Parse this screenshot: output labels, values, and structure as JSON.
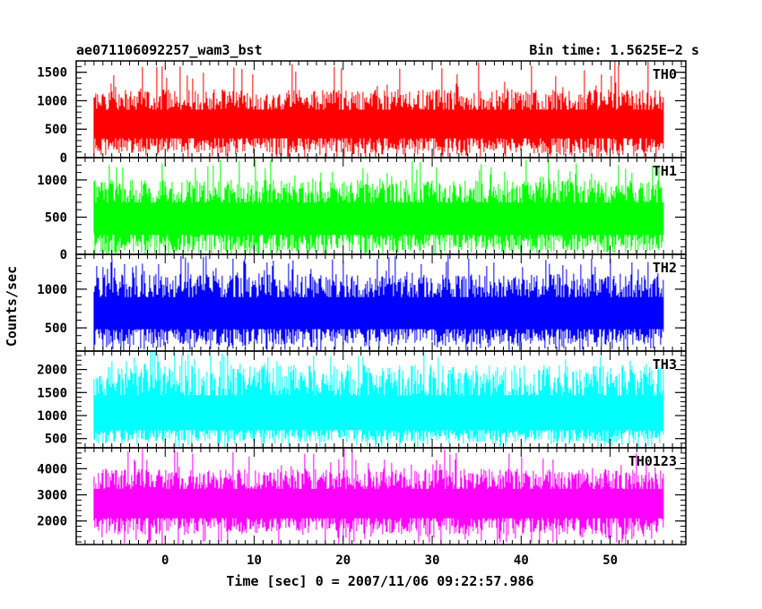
{
  "header": {
    "title": "ae071106092257_wam3_bst",
    "bin_time": "Bin time: 1.5625E−2 s"
  },
  "axes": {
    "ylabel": "Counts/sec",
    "xlabel": "Time [sec] 0 = 2007/11/06 09:22:57.986"
  },
  "chart_data": {
    "type": "line",
    "title": "ae071106092257_wam3_bst",
    "subtitle": "Bin time: 1.5625E−2 s",
    "xlabel": "Time [sec] 0 = 2007/11/06 09:22:57.986",
    "ylabel": "Counts/sec",
    "xlim": [
      -10,
      58.5
    ],
    "x_start": -8,
    "x_end": 56,
    "bin_time_s": 0.015625,
    "x_ticks": [
      "0",
      "10",
      "20",
      "30",
      "40",
      "50"
    ],
    "x_tick_values": [
      0,
      10,
      20,
      30,
      40,
      50
    ],
    "grid": false,
    "series": [
      {
        "name": "TH0",
        "color": "#ff0000",
        "ylim": [
          0,
          1700
        ],
        "y_ticks": [
          "0",
          "500",
          "1000",
          "1500"
        ],
        "y_tick_values": [
          0,
          500,
          1000,
          1500
        ],
        "baseline": 550,
        "low": 80,
        "high": 1200,
        "peak": 1700
      },
      {
        "name": "TH1",
        "color": "#00ff00",
        "ylim": [
          0,
          1300
        ],
        "y_ticks": [
          "0",
          "500",
          "1000"
        ],
        "y_tick_values": [
          0,
          500,
          1000
        ],
        "baseline": 450,
        "low": 30,
        "high": 1000,
        "peak": 1300
      },
      {
        "name": "TH2",
        "color": "#0000ff",
        "ylim": [
          200,
          1450
        ],
        "y_ticks": [
          "500",
          "1000"
        ],
        "y_tick_values": [
          500,
          1000
        ],
        "baseline": 650,
        "low": 280,
        "high": 1200,
        "peak": 1450
      },
      {
        "name": "TH3",
        "color": "#00ffff",
        "ylim": [
          300,
          2400
        ],
        "y_ticks": [
          "500",
          "1000",
          "1500",
          "2000"
        ],
        "y_tick_values": [
          500,
          1000,
          1500,
          2000
        ],
        "baseline": 900,
        "low": 420,
        "high": 2100,
        "peak": 2400
      },
      {
        "name": "TH0123",
        "color": "#ff00ff",
        "ylim": [
          1100,
          4800
        ],
        "y_ticks": [
          "2000",
          "3000",
          "4000"
        ],
        "y_tick_values": [
          2000,
          3000,
          4000
        ],
        "baseline": 2600,
        "low": 1500,
        "high": 4000,
        "peak": 4800
      }
    ]
  }
}
